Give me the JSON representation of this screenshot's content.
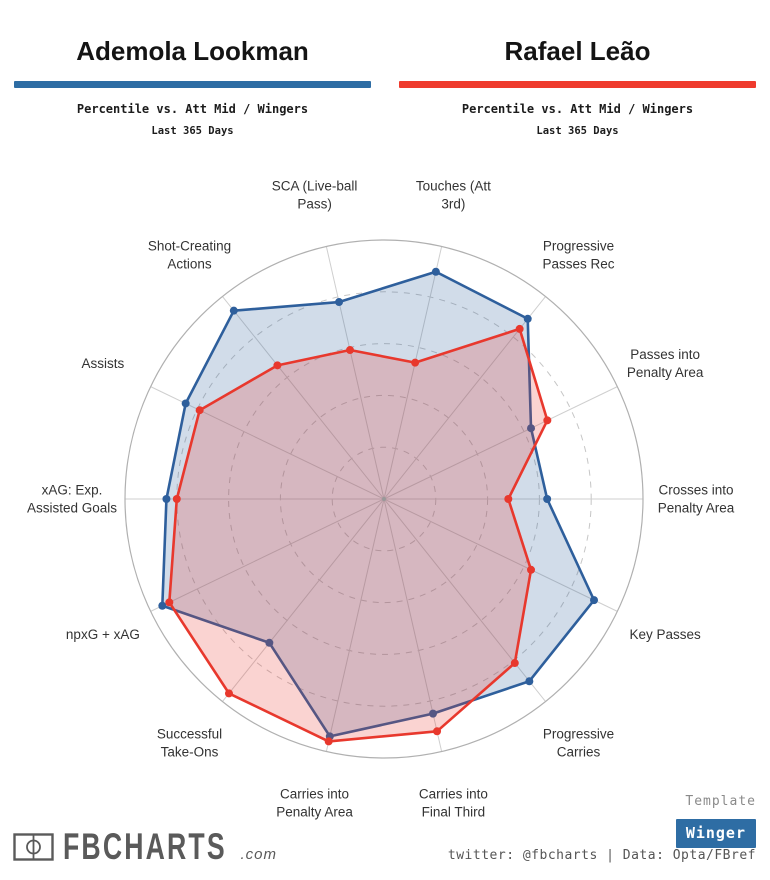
{
  "header": {
    "left": {
      "name": "Ademola Lookman",
      "subtitle": "Percentile vs. Att Mid / Wingers",
      "period": "Last 365 Days",
      "accent": "#2e6da4"
    },
    "right": {
      "name": "Rafael Leão",
      "subtitle": "Percentile vs. Att Mid / Wingers",
      "period": "Last 365 Days",
      "accent": "#ef3b2e"
    }
  },
  "chart_data": {
    "type": "radar",
    "scale": {
      "min": 0,
      "max": 100,
      "grid_rings": [
        20,
        40,
        60,
        80
      ],
      "outer_ring": 100
    },
    "start_angle_deg": 12.857,
    "clockwise": true,
    "axes": [
      {
        "label": "Touches (Att 3rd)",
        "lines": [
          "Touches (Att",
          "3rd)"
        ]
      },
      {
        "label": "Progressive Passes Rec",
        "lines": [
          "Progressive",
          "Passes Rec"
        ]
      },
      {
        "label": "Passes into Penalty Area",
        "lines": [
          "Passes into",
          "Penalty Area"
        ]
      },
      {
        "label": "Crosses into Penalty Area",
        "lines": [
          "Crosses into",
          "Penalty Area"
        ]
      },
      {
        "label": "Key Passes",
        "lines": [
          "Key Passes"
        ]
      },
      {
        "label": "Progressive Carries",
        "lines": [
          "Progressive",
          "Carries"
        ]
      },
      {
        "label": "Carries into Final Third",
        "lines": [
          "Carries into",
          "Final Third"
        ]
      },
      {
        "label": "Carries into Penalty Area",
        "lines": [
          "Carries into",
          "Penalty Area"
        ]
      },
      {
        "label": "Successful Take-Ons",
        "lines": [
          "Successful",
          "Take-Ons"
        ]
      },
      {
        "label": "npxG + xAG",
        "lines": [
          "npxG + xAG"
        ]
      },
      {
        "label": "xAG: Exp. Assisted Goals",
        "lines": [
          "xAG: Exp.",
          "Assisted Goals"
        ]
      },
      {
        "label": "Assists",
        "lines": [
          "Assists"
        ]
      },
      {
        "label": "Shot-Creating Actions",
        "lines": [
          "Shot-Creating",
          "Actions"
        ]
      },
      {
        "label": "SCA (Live-ball Pass)",
        "lines": [
          "SCA (Live-ball",
          "Pass)"
        ]
      }
    ],
    "series": [
      {
        "name": "Ademola Lookman",
        "color": "#2e5f9c",
        "fill_opacity": 0.22,
        "values": [
          90,
          89,
          63,
          63,
          90,
          90,
          85,
          94,
          71,
          95,
          84,
          85,
          93,
          78
        ]
      },
      {
        "name": "Rafael Leão",
        "color": "#e8382d",
        "fill_opacity": 0.22,
        "values": [
          54,
          84,
          70,
          48,
          63,
          81,
          92,
          96,
          96,
          92,
          80,
          79,
          66,
          59
        ]
      }
    ],
    "grid_colors": {
      "outer": "#b0b0b0",
      "rings": "#c6c6c6",
      "spokes": "#cfcfcf"
    },
    "label_color": "#333333"
  },
  "footer": {
    "logo_icon": "football-pitch-icon",
    "logo_text": "FBCHARTS",
    "logo_suffix": ".com",
    "template_label": "Template",
    "template_value": "Winger",
    "button_color": "#2e6da4",
    "credit": "twitter: @fbcharts | Data: Opta/FBref"
  }
}
